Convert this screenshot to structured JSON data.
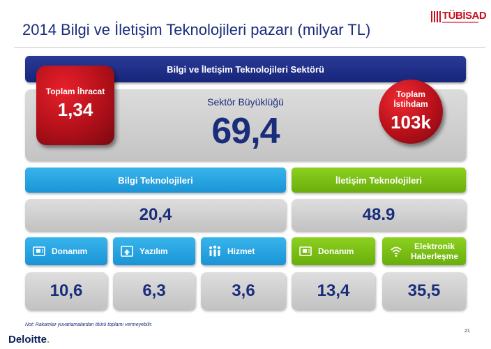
{
  "header": {
    "title": "2014 Bilgi ve İletişim Teknolojileri pazarı (milyar TL)",
    "logo_text": "TÜBİSAD"
  },
  "sector": {
    "bar_label": "Bilgi ve İletişim  Teknolojileri  Sektörü",
    "size_label": "Sektör Büyüklüğü",
    "size_value": "69,4",
    "export_label": "Toplam İhracat",
    "export_value": "1,34",
    "employment_label": "Toplam İstihdam",
    "employment_value": "103k"
  },
  "categories": {
    "it": {
      "label": "Bilgi  Teknolojileri",
      "value": "20,4"
    },
    "comm": {
      "label": "İletişim  Teknolojileri",
      "value": "48.9"
    }
  },
  "subcategories": [
    {
      "label": "Donanım",
      "icon": "hardware-icon",
      "value": "10,6"
    },
    {
      "label": "Yazılım",
      "icon": "software-icon",
      "value": "6,3"
    },
    {
      "label": "Hizmet",
      "icon": "people-icon",
      "value": "3,6"
    },
    {
      "label": "Donanım",
      "icon": "hardware-icon",
      "value": "13,4"
    },
    {
      "label": "Elektronik Haberleşme",
      "icon": "wifi-icon",
      "value": "35,5"
    }
  ],
  "footer": {
    "note": "Not: Rakamlar yuvarlamalardan ötürü toplamı vermeyebilir.",
    "page_number": "21",
    "brand": "Deloitte",
    "brand_dot": "."
  },
  "colors": {
    "navy": "#1a2d7a",
    "blue": "#1a94d6",
    "green": "#6aae0c",
    "red": "#c81020"
  }
}
